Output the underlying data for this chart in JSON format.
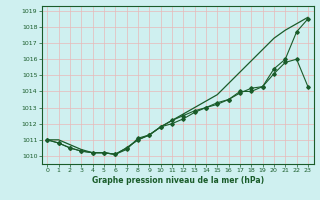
{
  "xlabel": "Graphe pression niveau de la mer (hPa)",
  "xlim": [
    -0.5,
    23.5
  ],
  "ylim": [
    1009.5,
    1019.3
  ],
  "yticks": [
    1010,
    1011,
    1012,
    1013,
    1014,
    1015,
    1016,
    1017,
    1018,
    1019
  ],
  "xticks": [
    0,
    1,
    2,
    3,
    4,
    5,
    6,
    7,
    8,
    9,
    10,
    11,
    12,
    13,
    14,
    15,
    16,
    17,
    18,
    19,
    20,
    21,
    22,
    23
  ],
  "bg_color": "#cff0f0",
  "grid_color": "#e8b8b8",
  "line_color": "#1a5c2a",
  "line_smooth": [
    1011.0,
    1011.0,
    1010.7,
    1010.4,
    1010.2,
    1010.2,
    1010.1,
    1010.5,
    1011.0,
    1011.3,
    1011.8,
    1012.2,
    1012.6,
    1013.0,
    1013.4,
    1013.8,
    1014.5,
    1015.2,
    1015.9,
    1016.6,
    1017.3,
    1017.8,
    1018.2,
    1018.6
  ],
  "line_markers1": [
    1011.0,
    1010.8,
    1010.5,
    1010.3,
    1010.2,
    1010.2,
    1010.1,
    1010.5,
    1011.0,
    1011.3,
    1011.8,
    1012.2,
    1012.5,
    1012.8,
    1013.0,
    1013.2,
    1013.5,
    1014.0,
    1014.0,
    1014.3,
    1015.4,
    1016.0,
    1017.7,
    1018.5
  ],
  "line_markers2": [
    1011.0,
    1010.8,
    1010.5,
    1010.3,
    1010.2,
    1010.2,
    1010.1,
    1010.4,
    1011.1,
    1011.3,
    1011.8,
    1012.0,
    1012.3,
    1012.7,
    1013.0,
    1013.3,
    1013.5,
    1013.9,
    1014.2,
    1014.3,
    1015.1,
    1015.8,
    1016.0,
    1014.3
  ]
}
